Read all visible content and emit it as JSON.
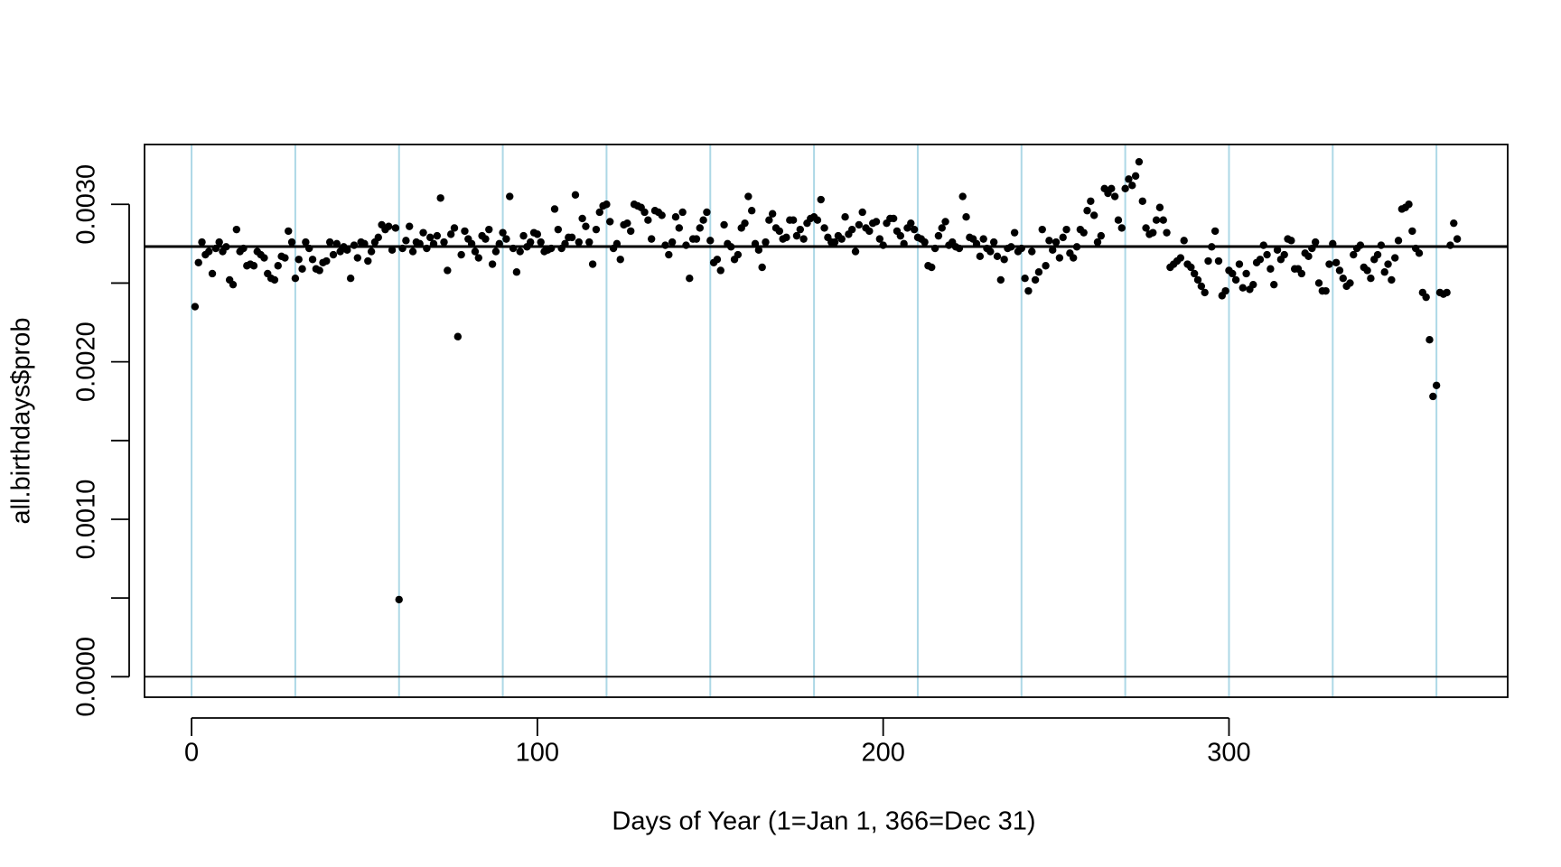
{
  "chart_data": {
    "type": "scatter",
    "x_label": "Days of Year (1=Jan 1, 366=Dec 31)",
    "y_label": "all.birthdays$prob",
    "x": [
      1,
      2,
      3,
      4,
      5,
      6,
      7,
      8,
      9,
      10,
      11,
      12,
      13,
      14,
      15,
      16,
      17,
      18,
      19,
      20,
      21,
      22,
      23,
      24,
      25,
      26,
      27,
      28,
      29,
      30,
      31,
      32,
      33,
      34,
      35,
      36,
      37,
      38,
      39,
      40,
      41,
      42,
      43,
      44,
      45,
      46,
      47,
      48,
      49,
      50,
      51,
      52,
      53,
      54,
      55,
      56,
      57,
      58,
      59,
      60,
      61,
      62,
      63,
      64,
      65,
      66,
      67,
      68,
      69,
      70,
      71,
      72,
      73,
      74,
      75,
      76,
      77,
      78,
      79,
      80,
      81,
      82,
      83,
      84,
      85,
      86,
      87,
      88,
      89,
      90,
      91,
      92,
      93,
      94,
      95,
      96,
      97,
      98,
      99,
      100,
      101,
      102,
      103,
      104,
      105,
      106,
      107,
      108,
      109,
      110,
      111,
      112,
      113,
      114,
      115,
      116,
      117,
      118,
      119,
      120,
      121,
      122,
      123,
      124,
      125,
      126,
      127,
      128,
      129,
      130,
      131,
      132,
      133,
      134,
      135,
      136,
      137,
      138,
      139,
      140,
      141,
      142,
      143,
      144,
      145,
      146,
      147,
      148,
      149,
      150,
      151,
      152,
      153,
      154,
      155,
      156,
      157,
      158,
      159,
      160,
      161,
      162,
      163,
      164,
      165,
      166,
      167,
      168,
      169,
      170,
      171,
      172,
      173,
      174,
      175,
      176,
      177,
      178,
      179,
      180,
      181,
      182,
      183,
      184,
      185,
      186,
      187,
      188,
      189,
      190,
      191,
      192,
      193,
      194,
      195,
      196,
      197,
      198,
      199,
      200,
      201,
      202,
      203,
      204,
      205,
      206,
      207,
      208,
      209,
      210,
      211,
      212,
      213,
      214,
      215,
      216,
      217,
      218,
      219,
      220,
      221,
      222,
      223,
      224,
      225,
      226,
      227,
      228,
      229,
      230,
      231,
      232,
      233,
      234,
      235,
      236,
      237,
      238,
      239,
      240,
      241,
      242,
      243,
      244,
      245,
      246,
      247,
      248,
      249,
      250,
      251,
      252,
      253,
      254,
      255,
      256,
      257,
      258,
      259,
      260,
      261,
      262,
      263,
      264,
      265,
      266,
      267,
      268,
      269,
      270,
      271,
      272,
      273,
      274,
      275,
      276,
      277,
      278,
      279,
      280,
      281,
      282,
      283,
      284,
      285,
      286,
      287,
      288,
      289,
      290,
      291,
      292,
      293,
      294,
      295,
      296,
      297,
      298,
      299,
      300,
      301,
      302,
      303,
      304,
      305,
      306,
      307,
      308,
      309,
      310,
      311,
      312,
      313,
      314,
      315,
      316,
      317,
      318,
      319,
      320,
      321,
      322,
      323,
      324,
      325,
      326,
      327,
      328,
      329,
      330,
      331,
      332,
      333,
      334,
      335,
      336,
      337,
      338,
      339,
      340,
      341,
      342,
      343,
      344,
      345,
      346,
      347,
      348,
      349,
      350,
      351,
      352,
      353,
      354,
      355,
      356,
      357,
      358,
      359,
      360,
      361,
      362,
      363,
      364,
      365,
      366
    ],
    "values": [
      0.00235,
      0.00263,
      0.00276,
      0.00268,
      0.0027,
      0.00256,
      0.00272,
      0.00276,
      0.0027,
      0.00273,
      0.00252,
      0.00249,
      0.00284,
      0.0027,
      0.00272,
      0.00261,
      0.00262,
      0.00261,
      0.0027,
      0.00268,
      0.00266,
      0.00256,
      0.00253,
      0.00252,
      0.00261,
      0.00267,
      0.00266,
      0.00283,
      0.00276,
      0.00253,
      0.00265,
      0.00259,
      0.00276,
      0.00272,
      0.00265,
      0.00259,
      0.00258,
      0.00263,
      0.00264,
      0.00276,
      0.00268,
      0.00275,
      0.0027,
      0.00273,
      0.00271,
      0.00253,
      0.00274,
      0.00266,
      0.00276,
      0.00275,
      0.00264,
      0.0027,
      0.00276,
      0.00279,
      0.00287,
      0.00284,
      0.00286,
      0.00271,
      0.00285,
      0.00049,
      0.00272,
      0.00277,
      0.00286,
      0.0027,
      0.00276,
      0.00275,
      0.00282,
      0.00272,
      0.00279,
      0.00275,
      0.0028,
      0.00304,
      0.00276,
      0.00258,
      0.00281,
      0.00285,
      0.00216,
      0.00268,
      0.00283,
      0.00278,
      0.00275,
      0.0027,
      0.00266,
      0.0028,
      0.00278,
      0.00284,
      0.00262,
      0.0027,
      0.00275,
      0.00282,
      0.00278,
      0.00305,
      0.00272,
      0.00257,
      0.0027,
      0.0028,
      0.00273,
      0.00276,
      0.00282,
      0.00281,
      0.00276,
      0.0027,
      0.00271,
      0.00272,
      0.00297,
      0.00284,
      0.00272,
      0.00275,
      0.00279,
      0.00279,
      0.00306,
      0.00276,
      0.00291,
      0.00286,
      0.00276,
      0.00262,
      0.00284,
      0.00295,
      0.00299,
      0.003,
      0.00289,
      0.00272,
      0.00275,
      0.00265,
      0.00287,
      0.00288,
      0.00283,
      0.003,
      0.00299,
      0.00298,
      0.00295,
      0.0029,
      0.00278,
      0.00296,
      0.00295,
      0.00293,
      0.00274,
      0.00268,
      0.00276,
      0.00292,
      0.00285,
      0.00295,
      0.00274,
      0.00253,
      0.00278,
      0.00278,
      0.00285,
      0.0029,
      0.00295,
      0.00277,
      0.00263,
      0.00265,
      0.00258,
      0.00287,
      0.00275,
      0.00273,
      0.00265,
      0.00268,
      0.00285,
      0.00288,
      0.00305,
      0.00296,
      0.00275,
      0.00271,
      0.0026,
      0.00276,
      0.0029,
      0.00294,
      0.00285,
      0.00283,
      0.00278,
      0.00279,
      0.0029,
      0.0029,
      0.0028,
      0.00284,
      0.00278,
      0.00288,
      0.00291,
      0.00292,
      0.0029,
      0.00303,
      0.00285,
      0.00279,
      0.00276,
      0.00276,
      0.0028,
      0.00278,
      0.00292,
      0.00281,
      0.00284,
      0.0027,
      0.00287,
      0.00295,
      0.00285,
      0.00283,
      0.00288,
      0.00289,
      0.00278,
      0.00274,
      0.00288,
      0.00291,
      0.00291,
      0.00283,
      0.0028,
      0.00275,
      0.00285,
      0.00288,
      0.00284,
      0.00279,
      0.00278,
      0.00276,
      0.00261,
      0.0026,
      0.00272,
      0.0028,
      0.00285,
      0.00289,
      0.00274,
      0.00276,
      0.00273,
      0.00272,
      0.00305,
      0.00292,
      0.00279,
      0.00278,
      0.00275,
      0.00267,
      0.00278,
      0.00272,
      0.0027,
      0.00276,
      0.00267,
      0.00252,
      0.00265,
      0.00272,
      0.00273,
      0.00282,
      0.0027,
      0.00272,
      0.00253,
      0.00245,
      0.0027,
      0.00252,
      0.00257,
      0.00284,
      0.00261,
      0.00277,
      0.00271,
      0.00276,
      0.00266,
      0.00279,
      0.00284,
      0.00269,
      0.00266,
      0.00273,
      0.00284,
      0.00282,
      0.00296,
      0.00302,
      0.00293,
      0.00276,
      0.0028,
      0.0031,
      0.00307,
      0.0031,
      0.00305,
      0.0029,
      0.00285,
      0.0031,
      0.00316,
      0.00312,
      0.00318,
      0.00327,
      0.00302,
      0.00285,
      0.00281,
      0.00282,
      0.0029,
      0.00298,
      0.0029,
      0.00282,
      0.0026,
      0.00262,
      0.00264,
      0.00266,
      0.00277,
      0.00262,
      0.0026,
      0.00256,
      0.00252,
      0.00248,
      0.00244,
      0.00264,
      0.00273,
      0.00283,
      0.00264,
      0.00242,
      0.00245,
      0.00258,
      0.00256,
      0.00252,
      0.00262,
      0.00247,
      0.00256,
      0.00246,
      0.00249,
      0.00263,
      0.00265,
      0.00274,
      0.00268,
      0.00259,
      0.00249,
      0.00271,
      0.00265,
      0.00268,
      0.00278,
      0.00277,
      0.00259,
      0.00259,
      0.00256,
      0.00269,
      0.00267,
      0.00272,
      0.00276,
      0.0025,
      0.00245,
      0.00245,
      0.00262,
      0.00275,
      0.00263,
      0.00258,
      0.00253,
      0.00248,
      0.0025,
      0.00268,
      0.00272,
      0.00274,
      0.0026,
      0.00258,
      0.00253,
      0.00265,
      0.00268,
      0.00274,
      0.00257,
      0.00262,
      0.00252,
      0.00266,
      0.00277,
      0.00297,
      0.00298,
      0.003,
      0.00283,
      0.00272,
      0.00269,
      0.00244,
      0.00241,
      0.00214,
      0.00178,
      0.00185,
      0.00244,
      0.00243,
      0.00244,
      0.00274,
      0.00288,
      0.00278
    ],
    "color": "#000000",
    "xlim": [
      -13.6,
      380.6
    ],
    "ylim": [
      -0.00013,
      0.00338
    ],
    "xticks": [
      0,
      100,
      200,
      300
    ],
    "yticks": [
      {
        "value": 0,
        "label": "0.0000"
      },
      {
        "value": 0.001,
        "label": "0.0010"
      },
      {
        "value": 0.002,
        "label": "0.0020"
      },
      {
        "value": 0.003,
        "label": "0.0030"
      }
    ],
    "yticks_unlabeled": [
      0.0005,
      0.0015,
      0.0025
    ],
    "vlines": [
      0,
      30,
      60,
      90,
      120,
      150,
      180,
      210,
      240,
      270,
      300,
      330,
      360
    ],
    "vline_color": "#add8e6",
    "hlines": [
      0,
      0.002732
    ]
  }
}
